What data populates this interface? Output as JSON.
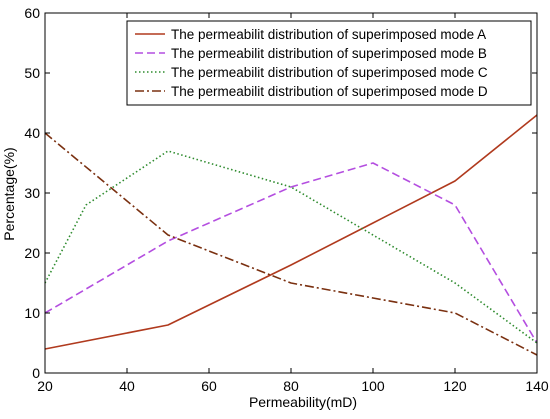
{
  "chart_data": {
    "type": "line",
    "xlabel": "Permeability(mD)",
    "ylabel": "Percentage(%)",
    "xlim": [
      20,
      140
    ],
    "ylim": [
      0,
      60
    ],
    "xticks": [
      "20",
      "40",
      "60",
      "80",
      "100",
      "120",
      "140"
    ],
    "yticks": [
      "0",
      "10",
      "20",
      "30",
      "40",
      "50",
      "60"
    ],
    "grid": false,
    "legend_position": "top-right",
    "series": [
      {
        "name": "The permeabilit distribution of superimposed mode A",
        "color": "#b03a1e",
        "style": "solid",
        "x": [
          20,
          50,
          80,
          100,
          120,
          140
        ],
        "y": [
          4,
          8,
          18,
          25,
          32,
          43
        ]
      },
      {
        "name": "The permeabilit distribution of superimposed mode B",
        "color": "#b44ee0",
        "style": "dashed",
        "x": [
          20,
          50,
          80,
          100,
          120,
          140
        ],
        "y": [
          10,
          22,
          31,
          35,
          28,
          5
        ]
      },
      {
        "name": "The permeabilit distribution of superimposed mode C",
        "color": "#2e8b2e",
        "style": "dotted",
        "x": [
          20,
          30,
          50,
          80,
          100,
          120,
          140
        ],
        "y": [
          15,
          28,
          37,
          31,
          23,
          15,
          5
        ]
      },
      {
        "name": "The permeabilit distribution of superimposed mode D",
        "color": "#7a3010",
        "style": "dashdot",
        "x": [
          20,
          50,
          80,
          100,
          120,
          140
        ],
        "y": [
          40,
          23,
          15,
          12.5,
          10,
          3
        ]
      }
    ]
  }
}
